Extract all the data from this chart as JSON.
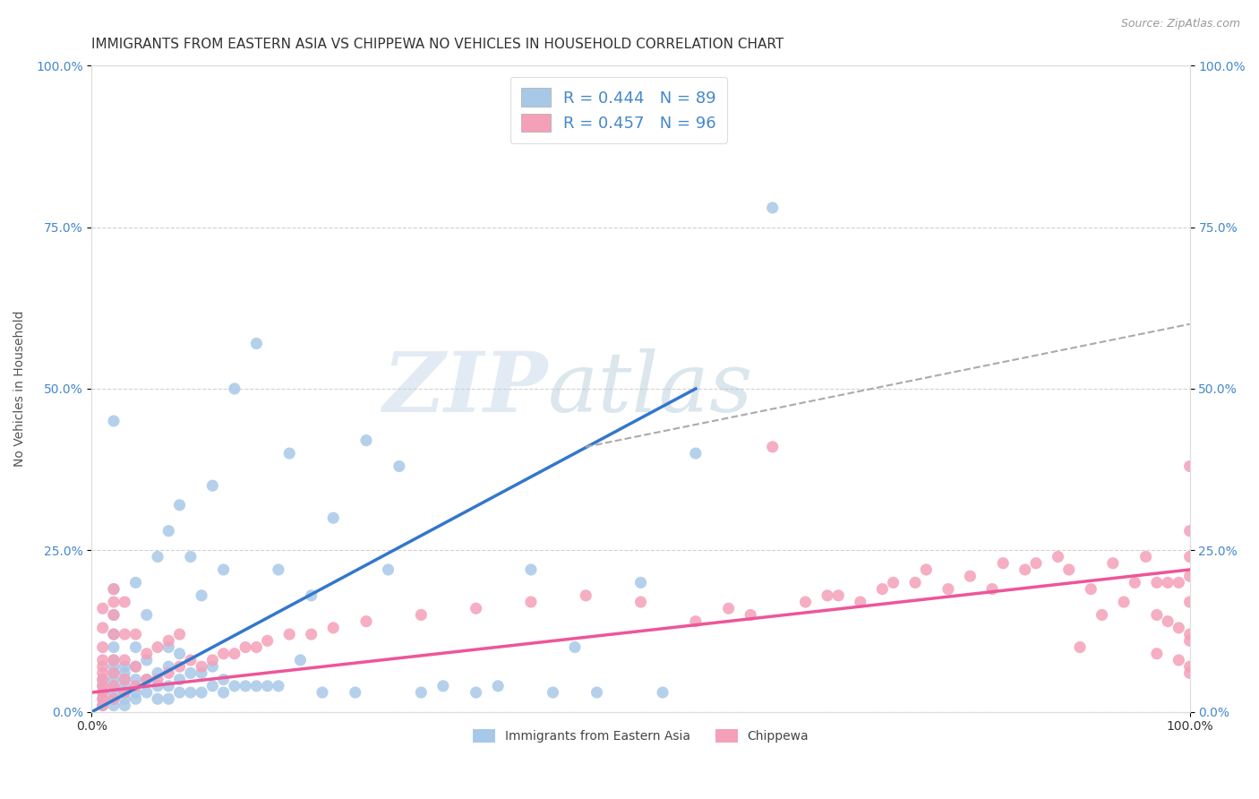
{
  "title": "IMMIGRANTS FROM EASTERN ASIA VS CHIPPEWA NO VEHICLES IN HOUSEHOLD CORRELATION CHART",
  "source": "Source: ZipAtlas.com",
  "ylabel": "No Vehicles in Household",
  "xlim": [
    0,
    1
  ],
  "ylim": [
    0,
    1
  ],
  "x_tick_labels": [
    "0.0%",
    "100.0%"
  ],
  "y_tick_labels": [
    "0.0%",
    "25.0%",
    "50.0%",
    "75.0%",
    "100.0%"
  ],
  "y_tick_vals": [
    0,
    0.25,
    0.5,
    0.75,
    1.0
  ],
  "legend_R1": "R = 0.444",
  "legend_N1": "N = 89",
  "legend_R2": "R = 0.457",
  "legend_N2": "N = 96",
  "color_blue": "#a8c8e8",
  "color_pink": "#f4a0b8",
  "color_blue_text": "#4488cc",
  "line_blue": "#3377cc",
  "line_pink": "#ee5599",
  "line_dashed": "#aaaaaa",
  "background_color": "#ffffff",
  "grid_color": "#cccccc",
  "title_fontsize": 11,
  "source_fontsize": 9,
  "label_fontsize": 10,
  "tick_fontsize": 10,
  "legend_fontsize": 12,
  "blue_line_x": [
    0.0,
    0.55
  ],
  "blue_line_y": [
    0.0,
    0.5
  ],
  "pink_line_x": [
    0.0,
    1.0
  ],
  "pink_line_y": [
    0.03,
    0.22
  ],
  "dashed_line_x": [
    0.45,
    1.0
  ],
  "dashed_line_y": [
    0.41,
    0.6
  ],
  "watermark_zip": "ZIP",
  "watermark_atlas": "atlas",
  "legend_label1": "Immigrants from Eastern Asia",
  "legend_label2": "Chippewa",
  "blue_scatter_x": [
    0.01,
    0.01,
    0.01,
    0.01,
    0.01,
    0.02,
    0.02,
    0.02,
    0.02,
    0.02,
    0.02,
    0.02,
    0.02,
    0.02,
    0.02,
    0.02,
    0.02,
    0.02,
    0.03,
    0.03,
    0.03,
    0.03,
    0.03,
    0.03,
    0.03,
    0.04,
    0.04,
    0.04,
    0.04,
    0.04,
    0.04,
    0.05,
    0.05,
    0.05,
    0.05,
    0.06,
    0.06,
    0.06,
    0.06,
    0.07,
    0.07,
    0.07,
    0.07,
    0.07,
    0.08,
    0.08,
    0.08,
    0.08,
    0.09,
    0.09,
    0.09,
    0.1,
    0.1,
    0.1,
    0.11,
    0.11,
    0.11,
    0.12,
    0.12,
    0.12,
    0.13,
    0.13,
    0.14,
    0.15,
    0.15,
    0.16,
    0.17,
    0.17,
    0.18,
    0.19,
    0.2,
    0.21,
    0.22,
    0.24,
    0.25,
    0.27,
    0.28,
    0.3,
    0.32,
    0.35,
    0.37,
    0.4,
    0.42,
    0.44,
    0.46,
    0.5,
    0.52,
    0.55,
    0.62
  ],
  "blue_scatter_y": [
    0.01,
    0.02,
    0.03,
    0.04,
    0.05,
    0.01,
    0.02,
    0.03,
    0.04,
    0.05,
    0.06,
    0.07,
    0.08,
    0.1,
    0.12,
    0.15,
    0.19,
    0.45,
    0.01,
    0.02,
    0.03,
    0.04,
    0.05,
    0.06,
    0.07,
    0.02,
    0.03,
    0.05,
    0.07,
    0.1,
    0.2,
    0.03,
    0.05,
    0.08,
    0.15,
    0.02,
    0.04,
    0.06,
    0.24,
    0.02,
    0.04,
    0.07,
    0.1,
    0.28,
    0.03,
    0.05,
    0.09,
    0.32,
    0.03,
    0.06,
    0.24,
    0.03,
    0.06,
    0.18,
    0.04,
    0.07,
    0.35,
    0.03,
    0.05,
    0.22,
    0.04,
    0.5,
    0.04,
    0.04,
    0.57,
    0.04,
    0.04,
    0.22,
    0.4,
    0.08,
    0.18,
    0.03,
    0.3,
    0.03,
    0.42,
    0.22,
    0.38,
    0.03,
    0.04,
    0.03,
    0.04,
    0.22,
    0.03,
    0.1,
    0.03,
    0.2,
    0.03,
    0.4,
    0.78
  ],
  "pink_scatter_x": [
    0.01,
    0.01,
    0.01,
    0.01,
    0.01,
    0.01,
    0.01,
    0.01,
    0.01,
    0.01,
    0.01,
    0.02,
    0.02,
    0.02,
    0.02,
    0.02,
    0.02,
    0.02,
    0.02,
    0.03,
    0.03,
    0.03,
    0.03,
    0.03,
    0.04,
    0.04,
    0.04,
    0.05,
    0.05,
    0.06,
    0.06,
    0.07,
    0.07,
    0.08,
    0.08,
    0.09,
    0.1,
    0.11,
    0.12,
    0.13,
    0.14,
    0.15,
    0.16,
    0.18,
    0.2,
    0.22,
    0.25,
    0.3,
    0.35,
    0.4,
    0.45,
    0.5,
    0.55,
    0.58,
    0.6,
    0.62,
    0.65,
    0.67,
    0.68,
    0.7,
    0.72,
    0.73,
    0.75,
    0.76,
    0.78,
    0.8,
    0.82,
    0.83,
    0.85,
    0.86,
    0.88,
    0.89,
    0.9,
    0.91,
    0.92,
    0.93,
    0.94,
    0.95,
    0.96,
    0.97,
    0.97,
    0.97,
    0.98,
    0.98,
    0.99,
    0.99,
    0.99,
    1.0,
    1.0,
    1.0,
    1.0,
    1.0,
    1.0,
    1.0,
    1.0,
    1.0
  ],
  "pink_scatter_y": [
    0.01,
    0.02,
    0.03,
    0.04,
    0.05,
    0.06,
    0.07,
    0.08,
    0.1,
    0.13,
    0.16,
    0.02,
    0.04,
    0.06,
    0.08,
    0.12,
    0.15,
    0.17,
    0.19,
    0.03,
    0.05,
    0.08,
    0.12,
    0.17,
    0.04,
    0.07,
    0.12,
    0.05,
    0.09,
    0.05,
    0.1,
    0.06,
    0.11,
    0.07,
    0.12,
    0.08,
    0.07,
    0.08,
    0.09,
    0.09,
    0.1,
    0.1,
    0.11,
    0.12,
    0.12,
    0.13,
    0.14,
    0.15,
    0.16,
    0.17,
    0.18,
    0.17,
    0.14,
    0.16,
    0.15,
    0.41,
    0.17,
    0.18,
    0.18,
    0.17,
    0.19,
    0.2,
    0.2,
    0.22,
    0.19,
    0.21,
    0.19,
    0.23,
    0.22,
    0.23,
    0.24,
    0.22,
    0.1,
    0.19,
    0.15,
    0.23,
    0.17,
    0.2,
    0.24,
    0.09,
    0.15,
    0.2,
    0.14,
    0.2,
    0.08,
    0.13,
    0.2,
    0.07,
    0.11,
    0.17,
    0.21,
    0.24,
    0.28,
    0.06,
    0.12,
    0.38
  ]
}
